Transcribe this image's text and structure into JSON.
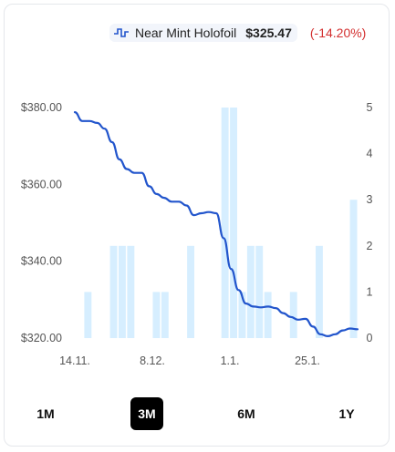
{
  "legend": {
    "icon": "line-chart-icon",
    "name": "Near Mint Holofoil",
    "price": "$325.47",
    "change": "(-14.20%)",
    "line_color": "#2255cc",
    "change_color": "#d32f2f"
  },
  "chart_data": {
    "type": "line",
    "x_ticks": [
      "14.11.",
      "8.12.",
      "1.1.",
      "25.1."
    ],
    "y_left_ticks": [
      "$380.00",
      "$360.00",
      "$340.00",
      "$320.00"
    ],
    "y_right_ticks": [
      "5",
      "4",
      "3",
      "2",
      "1",
      "0"
    ],
    "ylim_left": [
      320,
      380
    ],
    "ylim_right": [
      0,
      5
    ],
    "series": [
      {
        "kind": "line",
        "color": "#2255cc",
        "values": [
          378.8,
          376.5,
          376.5,
          376.0,
          374.5,
          371.0,
          366.5,
          364.0,
          363.0,
          363.0,
          359.5,
          357.5,
          356.5,
          355.5,
          355.5,
          354.5,
          352.0,
          352.5,
          352.8,
          352.5,
          346.0,
          338.0,
          332.5,
          329.0,
          328.2,
          328.0,
          328.2,
          327.8,
          326.5,
          325.5,
          324.8,
          325.0,
          323.0,
          321.0,
          320.5,
          321.0,
          322.0,
          322.5,
          322.3
        ]
      },
      {
        "kind": "bar",
        "color": "#d6eeff",
        "values": [
          0,
          1,
          0,
          0,
          2,
          2,
          2,
          0,
          0,
          1,
          1,
          0,
          0,
          2,
          0,
          0,
          0,
          5,
          5,
          1,
          2,
          2,
          1,
          0,
          0,
          1,
          0,
          0,
          2,
          0,
          0,
          0,
          3
        ]
      }
    ]
  },
  "tabs": [
    {
      "label": "1M",
      "active": false
    },
    {
      "label": "3M",
      "active": true
    },
    {
      "label": "6M",
      "active": false
    },
    {
      "label": "1Y",
      "active": false
    }
  ]
}
